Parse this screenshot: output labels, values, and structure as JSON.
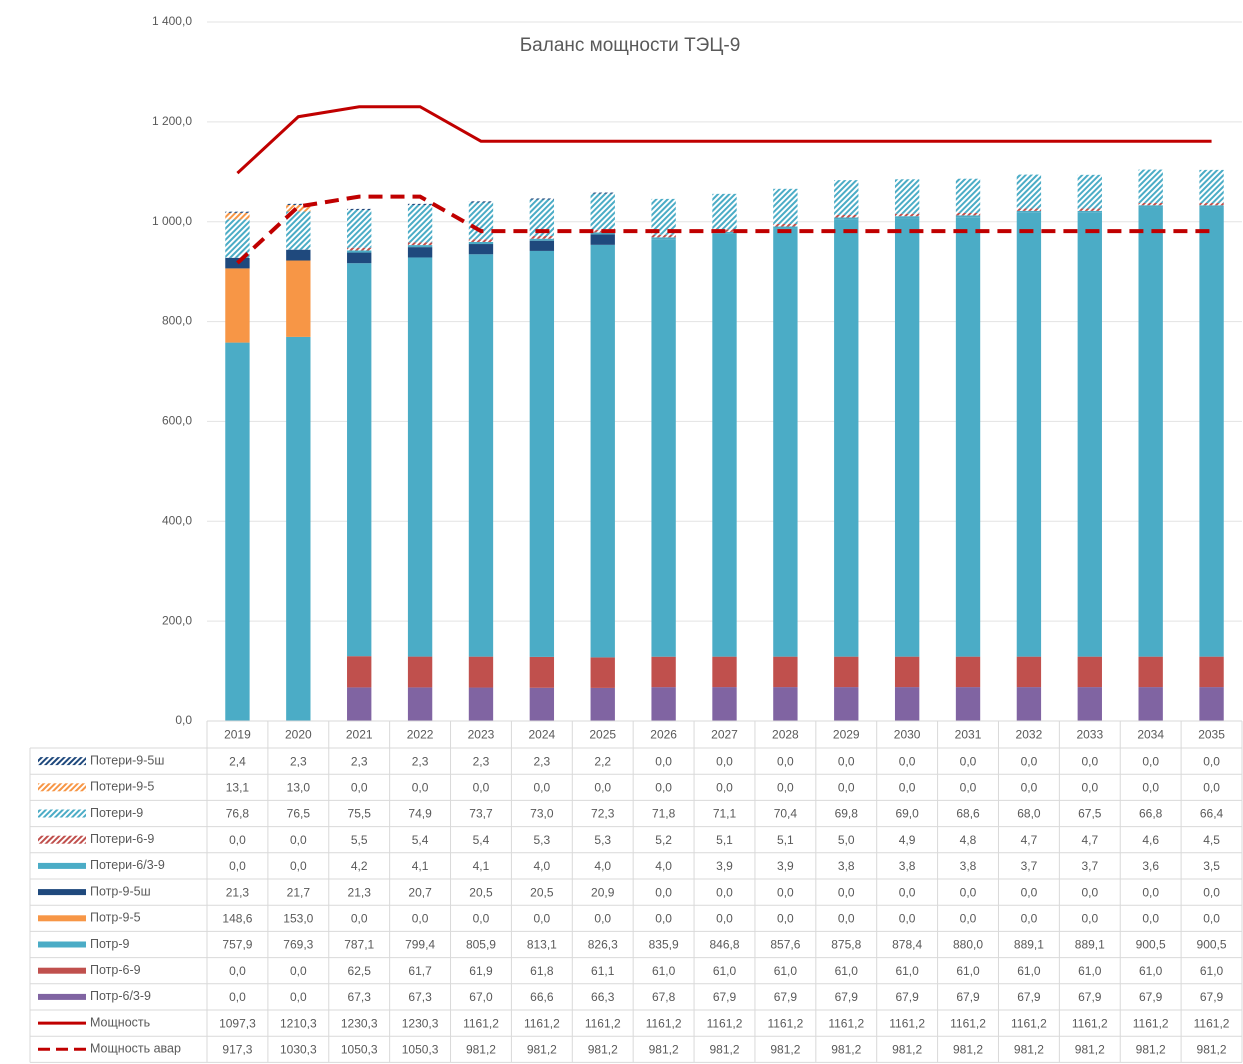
{
  "chart_data": {
    "type": "bar",
    "stacked": true,
    "title": "Баланс мощности ТЭЦ-9",
    "categories": [
      "2019",
      "2020",
      "2021",
      "2022",
      "2023",
      "2024",
      "2025",
      "2026",
      "2027",
      "2028",
      "2029",
      "2030",
      "2031",
      "2032",
      "2033",
      "2034",
      "2035"
    ],
    "ylim": [
      0,
      1400
    ],
    "yticks": [
      {
        "value": 0,
        "label": "0,0"
      },
      {
        "value": 200,
        "label": "200,0"
      },
      {
        "value": 400,
        "label": "400,0"
      },
      {
        "value": 600,
        "label": "600,0"
      },
      {
        "value": 800,
        "label": "800,0"
      },
      {
        "value": 1000,
        "label": "1 000,0"
      },
      {
        "value": 1200,
        "label": "1 200,0"
      },
      {
        "value": 1400,
        "label": "1 400,0"
      }
    ],
    "grid": true,
    "data_table": true,
    "series": [
      {
        "name": "Потери-9-5ш",
        "type": "bar",
        "color": "#1f497d",
        "hatch": true,
        "values": [
          2.4,
          2.3,
          2.3,
          2.3,
          2.3,
          2.3,
          2.2,
          0,
          0,
          0,
          0,
          0,
          0,
          0,
          0,
          0,
          0
        ],
        "value_labels": [
          "2,4",
          "2,3",
          "2,3",
          "2,3",
          "2,3",
          "2,3",
          "2,2",
          "0,0",
          "0,0",
          "0,0",
          "0,0",
          "0,0",
          "0,0",
          "0,0",
          "0,0",
          "0,0",
          "0,0"
        ]
      },
      {
        "name": "Потери-9-5",
        "type": "bar",
        "color": "#f79646",
        "hatch": true,
        "values": [
          13.1,
          13.0,
          0,
          0,
          0,
          0,
          0,
          0,
          0,
          0,
          0,
          0,
          0,
          0,
          0,
          0,
          0
        ],
        "value_labels": [
          "13,1",
          "13,0",
          "0,0",
          "0,0",
          "0,0",
          "0,0",
          "0,0",
          "0,0",
          "0,0",
          "0,0",
          "0,0",
          "0,0",
          "0,0",
          "0,0",
          "0,0",
          "0,0",
          "0,0"
        ]
      },
      {
        "name": "Потери-9",
        "type": "bar",
        "color": "#4bacc6",
        "hatch": true,
        "values": [
          76.8,
          76.5,
          75.5,
          74.9,
          73.7,
          73.0,
          72.3,
          71.8,
          71.1,
          70.4,
          69.8,
          69.0,
          68.6,
          68.0,
          67.5,
          66.8,
          66.4
        ],
        "value_labels": [
          "76,8",
          "76,5",
          "75,5",
          "74,9",
          "73,7",
          "73,0",
          "72,3",
          "71,8",
          "71,1",
          "70,4",
          "69,8",
          "69,0",
          "68,6",
          "68,0",
          "67,5",
          "66,8",
          "66,4"
        ]
      },
      {
        "name": "Потери-6-9",
        "type": "bar",
        "color": "#c0504d",
        "hatch": true,
        "values": [
          0,
          0,
          5.5,
          5.4,
          5.4,
          5.3,
          5.3,
          5.2,
          5.1,
          5.1,
          5.0,
          4.9,
          4.8,
          4.7,
          4.7,
          4.6,
          4.5
        ],
        "value_labels": [
          "0,0",
          "0,0",
          "5,5",
          "5,4",
          "5,4",
          "5,3",
          "5,3",
          "5,2",
          "5,1",
          "5,1",
          "5,0",
          "4,9",
          "4,8",
          "4,7",
          "4,7",
          "4,6",
          "4,5"
        ]
      },
      {
        "name": "Потери-6/3-9",
        "type": "bar",
        "color": "#4bacc6",
        "hatch": false,
        "values": [
          0,
          0,
          4.2,
          4.1,
          4.1,
          4.0,
          4.0,
          4.0,
          3.9,
          3.9,
          3.8,
          3.8,
          3.8,
          3.7,
          3.7,
          3.6,
          3.5
        ],
        "value_labels": [
          "0,0",
          "0,0",
          "4,2",
          "4,1",
          "4,1",
          "4,0",
          "4,0",
          "4,0",
          "3,9",
          "3,9",
          "3,8",
          "3,8",
          "3,8",
          "3,7",
          "3,7",
          "3,6",
          "3,5"
        ]
      },
      {
        "name": "Потр-9-5ш",
        "type": "bar",
        "color": "#1f497d",
        "hatch": false,
        "values": [
          21.3,
          21.7,
          21.3,
          20.7,
          20.5,
          20.5,
          20.9,
          0,
          0,
          0,
          0,
          0,
          0,
          0,
          0,
          0,
          0
        ],
        "value_labels": [
          "21,3",
          "21,7",
          "21,3",
          "20,7",
          "20,5",
          "20,5",
          "20,9",
          "0,0",
          "0,0",
          "0,0",
          "0,0",
          "0,0",
          "0,0",
          "0,0",
          "0,0",
          "0,0",
          "0,0"
        ]
      },
      {
        "name": "Потр-9-5",
        "type": "bar",
        "color": "#f79646",
        "hatch": false,
        "values": [
          148.6,
          153.0,
          0,
          0,
          0,
          0,
          0,
          0,
          0,
          0,
          0,
          0,
          0,
          0,
          0,
          0,
          0
        ],
        "value_labels": [
          "148,6",
          "153,0",
          "0,0",
          "0,0",
          "0,0",
          "0,0",
          "0,0",
          "0,0",
          "0,0",
          "0,0",
          "0,0",
          "0,0",
          "0,0",
          "0,0",
          "0,0",
          "0,0",
          "0,0"
        ]
      },
      {
        "name": "Потр-9",
        "type": "bar",
        "color": "#4bacc6",
        "hatch": false,
        "values": [
          757.9,
          769.3,
          787.1,
          799.4,
          805.9,
          813.1,
          826.3,
          835.9,
          846.8,
          857.6,
          875.8,
          878.4,
          880.0,
          889.1,
          889.1,
          900.5,
          900.5
        ],
        "value_labels": [
          "757,9",
          "769,3",
          "787,1",
          "799,4",
          "805,9",
          "813,1",
          "826,3",
          "835,9",
          "846,8",
          "857,6",
          "875,8",
          "878,4",
          "880,0",
          "889,1",
          "889,1",
          "900,5",
          "900,5"
        ]
      },
      {
        "name": "Потр-6-9",
        "type": "bar",
        "color": "#c0504d",
        "hatch": false,
        "values": [
          0,
          0,
          62.5,
          61.7,
          61.9,
          61.8,
          61.1,
          61.0,
          61.0,
          61.0,
          61.0,
          61.0,
          61.0,
          61.0,
          61.0,
          61.0,
          61.0
        ],
        "value_labels": [
          "0,0",
          "0,0",
          "62,5",
          "61,7",
          "61,9",
          "61,8",
          "61,1",
          "61,0",
          "61,0",
          "61,0",
          "61,0",
          "61,0",
          "61,0",
          "61,0",
          "61,0",
          "61,0",
          "61,0"
        ]
      },
      {
        "name": "Потр-6/3-9",
        "type": "bar",
        "color": "#8064a2",
        "hatch": false,
        "values": [
          0,
          0,
          67.3,
          67.3,
          67.0,
          66.6,
          66.3,
          67.8,
          67.9,
          67.9,
          67.9,
          67.9,
          67.9,
          67.9,
          67.9,
          67.9,
          67.9
        ],
        "value_labels": [
          "0,0",
          "0,0",
          "67,3",
          "67,3",
          "67,0",
          "66,6",
          "66,3",
          "67,8",
          "67,9",
          "67,9",
          "67,9",
          "67,9",
          "67,9",
          "67,9",
          "67,9",
          "67,9",
          "67,9"
        ]
      },
      {
        "name": "Мощность",
        "type": "line",
        "color": "#c00000",
        "dashed": false,
        "values": [
          1097.3,
          1210.3,
          1230.3,
          1230.3,
          1161.2,
          1161.2,
          1161.2,
          1161.2,
          1161.2,
          1161.2,
          1161.2,
          1161.2,
          1161.2,
          1161.2,
          1161.2,
          1161.2,
          1161.2
        ],
        "value_labels": [
          "1097,3",
          "1210,3",
          "1230,3",
          "1230,3",
          "1161,2",
          "1161,2",
          "1161,2",
          "1161,2",
          "1161,2",
          "1161,2",
          "1161,2",
          "1161,2",
          "1161,2",
          "1161,2",
          "1161,2",
          "1161,2",
          "1161,2"
        ]
      },
      {
        "name": "Мощность авар",
        "type": "line",
        "color": "#c00000",
        "dashed": true,
        "values": [
          917.3,
          1030.3,
          1050.3,
          1050.3,
          981.2,
          981.2,
          981.2,
          981.2,
          981.2,
          981.2,
          981.2,
          981.2,
          981.2,
          981.2,
          981.2,
          981.2,
          981.2
        ],
        "value_labels": [
          "917,3",
          "1030,3",
          "1050,3",
          "1050,3",
          "981,2",
          "981,2",
          "981,2",
          "981,2",
          "981,2",
          "981,2",
          "981,2",
          "981,2",
          "981,2",
          "981,2",
          "981,2",
          "981,2",
          "981,2"
        ]
      }
    ]
  }
}
